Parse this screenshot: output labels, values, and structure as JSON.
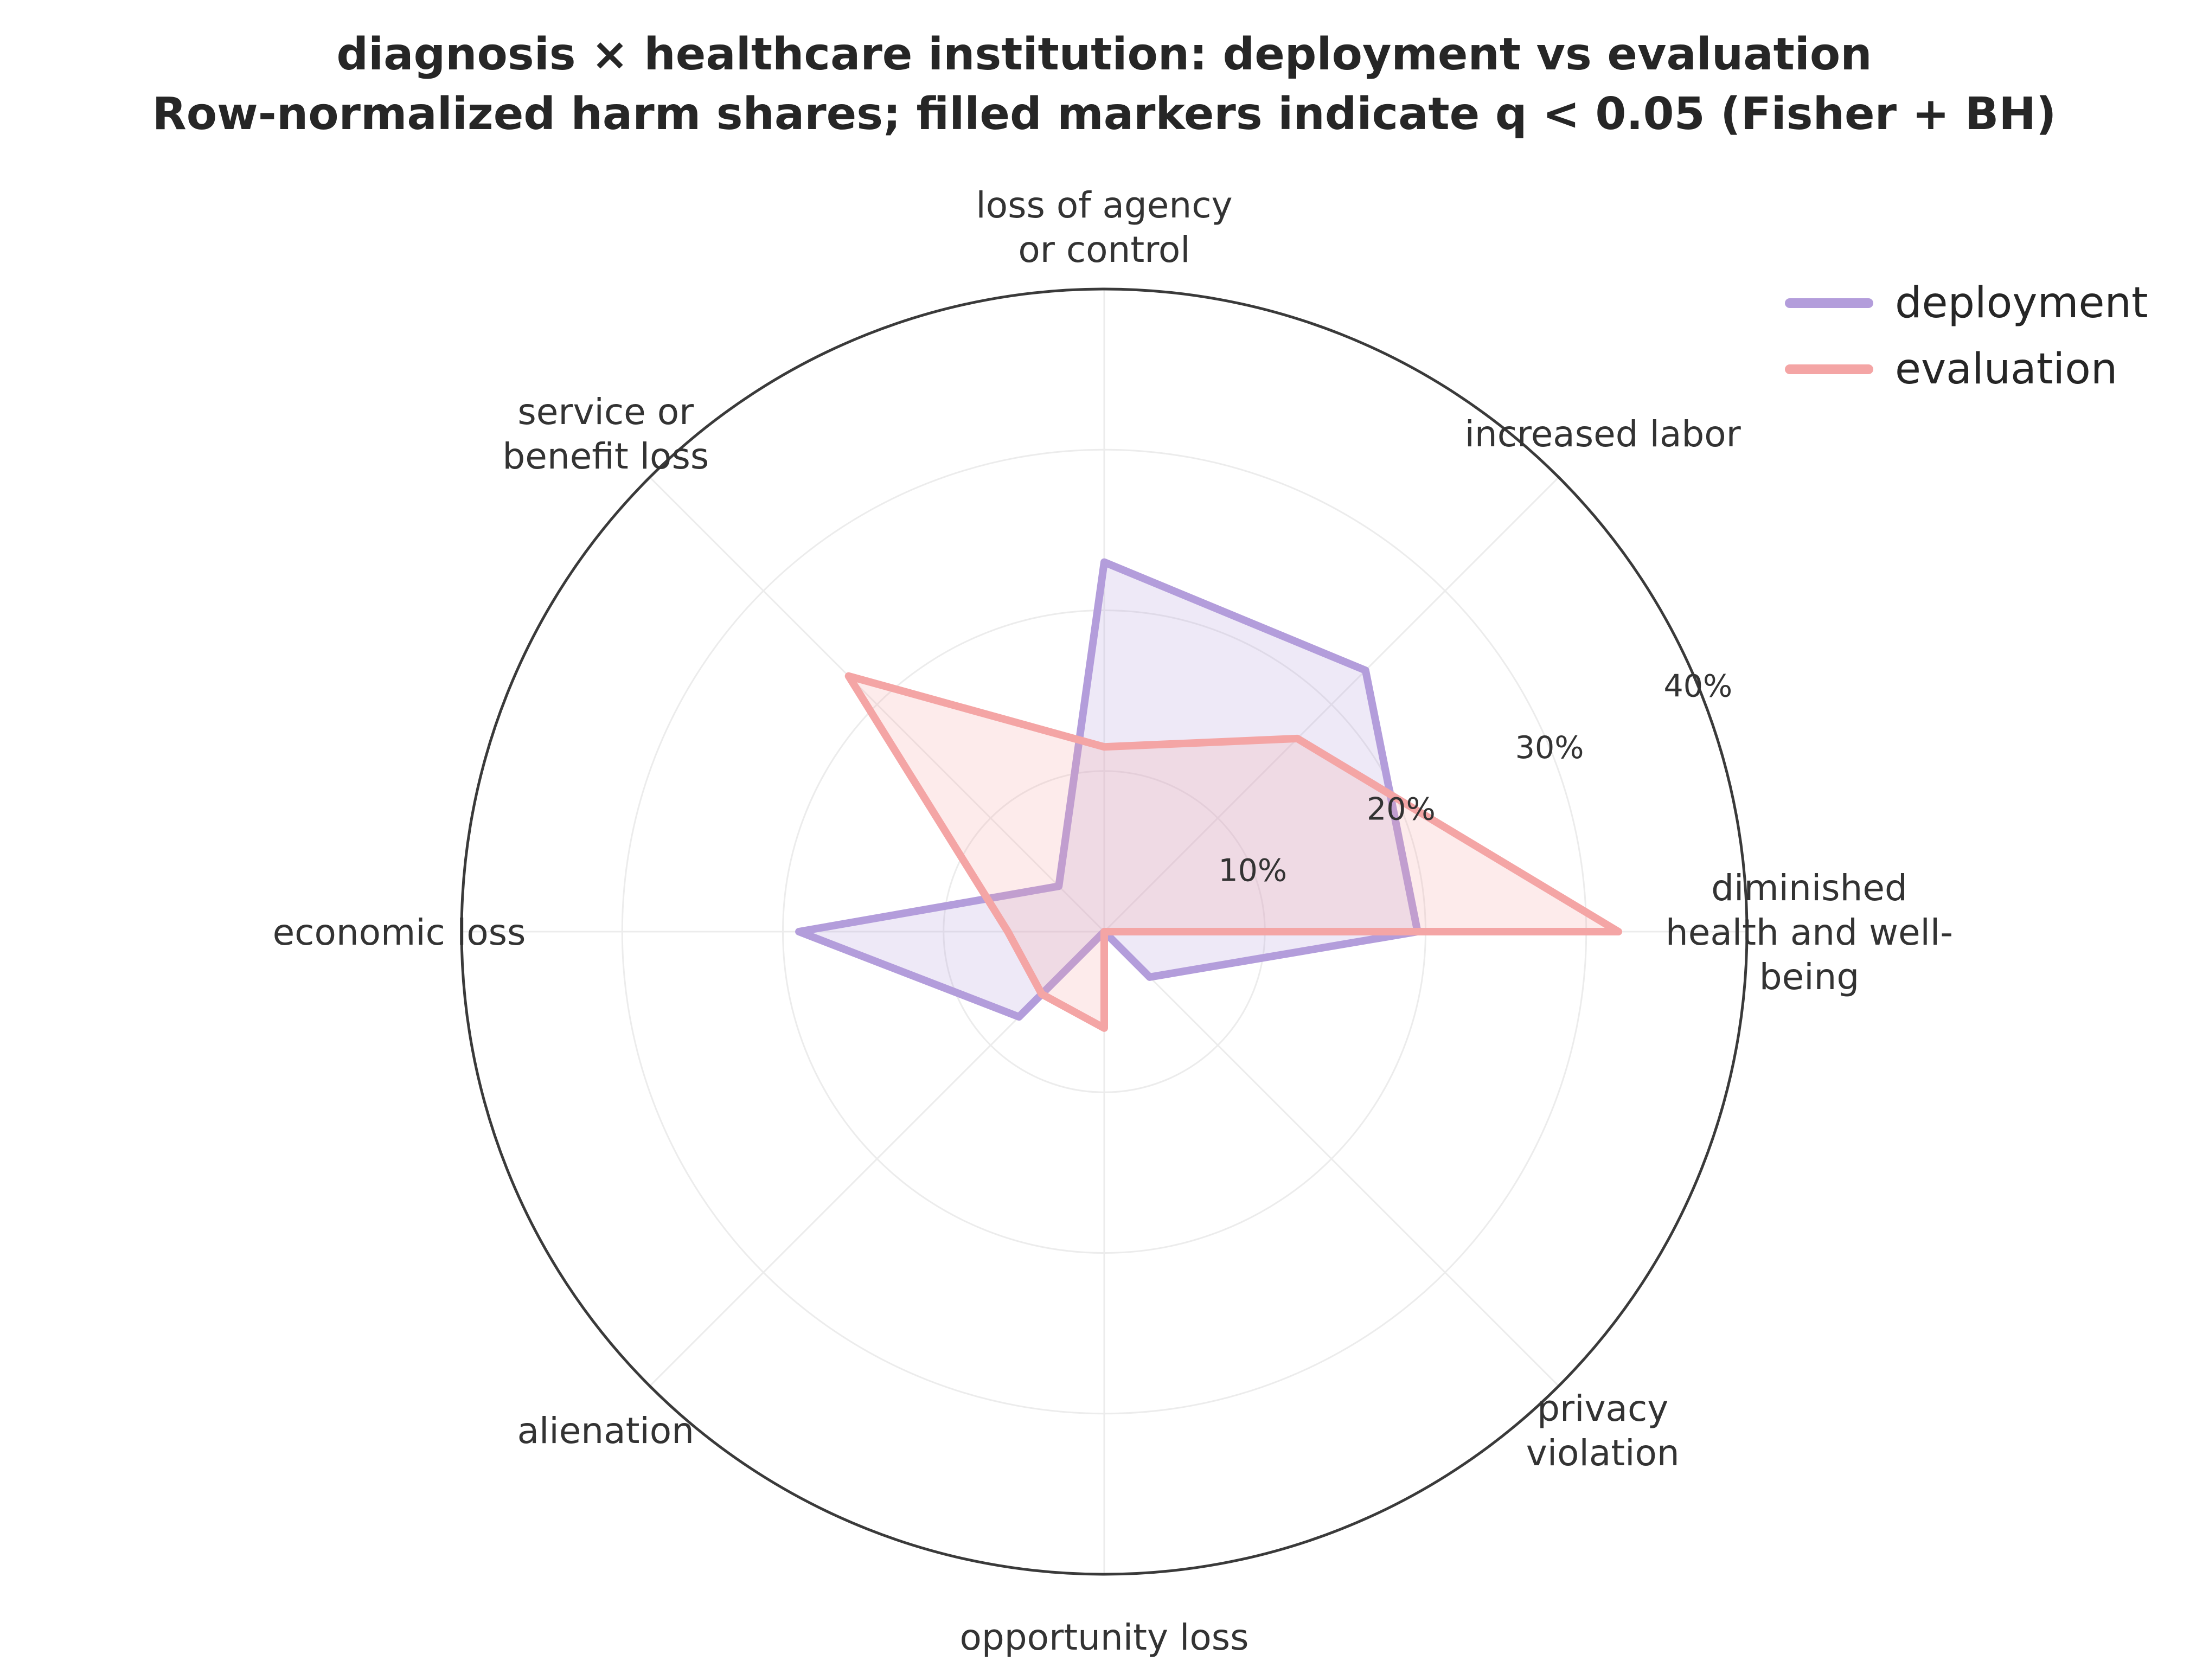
{
  "chart_data": {
    "type": "radar",
    "title": "diagnosis × healthcare institution: deployment vs evaluation",
    "subtitle": "Row-normalized harm shares; filled markers indicate q < 0.05 (Fisher + BH)",
    "axes": [
      {
        "id": "diminished",
        "lines": [
          "diminished",
          "health and well-",
          "being"
        ]
      },
      {
        "id": "increased_labor",
        "lines": [
          "increased labor"
        ]
      },
      {
        "id": "loss_of_agency",
        "lines": [
          "loss of agency",
          "or control"
        ]
      },
      {
        "id": "service_loss",
        "lines": [
          "service or",
          "benefit loss"
        ]
      },
      {
        "id": "economic_loss",
        "lines": [
          "economic loss"
        ]
      },
      {
        "id": "alienation",
        "lines": [
          "alienation"
        ]
      },
      {
        "id": "opportunity_loss",
        "lines": [
          "opportunity loss"
        ]
      },
      {
        "id": "privacy_violation",
        "lines": [
          "privacy",
          "violation"
        ]
      }
    ],
    "rmax": 40,
    "ticks": [
      {
        "value": 10,
        "label": "10%"
      },
      {
        "value": 20,
        "label": "20%"
      },
      {
        "value": 30,
        "label": "30%"
      },
      {
        "value": 40,
        "label": "40%"
      }
    ],
    "series": [
      {
        "name": "deployment",
        "color": "#b39ddb",
        "values": [
          19.5,
          23.0,
          23.0,
          4.0,
          19.0,
          7.5,
          0.0,
          4.0
        ]
      },
      {
        "name": "evaluation",
        "color": "#f4a5a5",
        "values": [
          32.0,
          17.0,
          11.5,
          22.5,
          6.0,
          5.5,
          6.0,
          0.0
        ]
      }
    ],
    "legend_position": "top-right",
    "grid": true
  }
}
